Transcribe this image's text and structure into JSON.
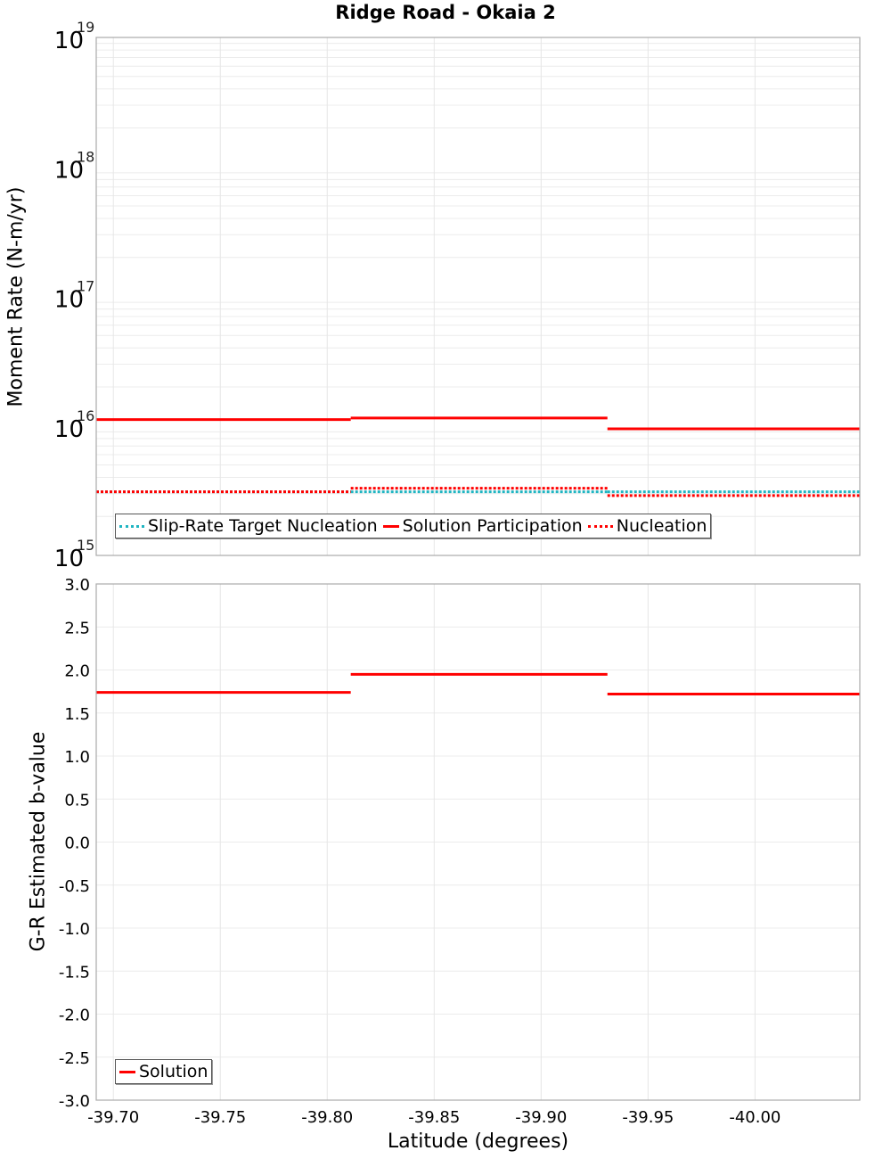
{
  "title": "Ridge Road - Okaia 2",
  "top_plot": {
    "ylabel": "Moment Rate (N-m/yr)",
    "yticks": [
      {
        "base": "10",
        "exp": "19"
      },
      {
        "base": "10",
        "exp": "18"
      },
      {
        "base": "10",
        "exp": "17"
      },
      {
        "base": "10",
        "exp": "16"
      },
      {
        "base": "10",
        "exp": "15"
      }
    ],
    "legend": [
      {
        "label": "Slip-Rate Target Nucleation",
        "style": "dotted",
        "color": "#1fb5c2"
      },
      {
        "label": "Solution Participation",
        "style": "solid",
        "color": "#ff0000"
      },
      {
        "label": "Nucleation",
        "style": "dotted",
        "color": "#ff0000"
      }
    ]
  },
  "bottom_plot": {
    "ylabel": "G-R Estimated b-value",
    "yticks": [
      "3.0",
      "2.5",
      "2.0",
      "1.5",
      "1.0",
      "0.5",
      "0.0",
      "-0.5",
      "-1.0",
      "-1.5",
      "-2.0",
      "-2.5",
      "-3.0"
    ],
    "legend": [
      {
        "label": "Solution",
        "style": "solid",
        "color": "#ff0000"
      }
    ]
  },
  "xaxis": {
    "label": "Latitude (degrees)",
    "ticks": [
      "-39.70",
      "-39.75",
      "-39.80",
      "-39.85",
      "-39.90",
      "-39.95",
      "-40.00"
    ]
  },
  "chart_data": [
    {
      "type": "line",
      "title": "Ridge Road - Okaia 2",
      "xlabel": "Latitude (degrees)",
      "ylabel": "Moment Rate (N-m/yr)",
      "yscale": "log",
      "ylim": [
        1000000000000000.0,
        1e+19
      ],
      "xlim": [
        -39.692,
        -40.049
      ],
      "grid": true,
      "legend_position": "lower-left",
      "step_segments_x": [
        [
          -39.692,
          -39.811
        ],
        [
          -39.811,
          -39.931
        ],
        [
          -39.931,
          -40.049
        ]
      ],
      "series": [
        {
          "name": "Slip-Rate Target Nucleation",
          "style": "dotted",
          "color": "#1fb5c2",
          "values": [
            3100000000000000.0,
            3100000000000000.0,
            3100000000000000.0
          ]
        },
        {
          "name": "Solution Participation",
          "style": "solid",
          "color": "#ff0000",
          "values": [
            1.12e+16,
            1.15e+16,
            9500000000000000.0
          ]
        },
        {
          "name": "Nucleation",
          "style": "dotted",
          "color": "#ff0000",
          "values": [
            3100000000000000.0,
            3300000000000000.0,
            2900000000000000.0
          ]
        }
      ]
    },
    {
      "type": "line",
      "xlabel": "Latitude (degrees)",
      "ylabel": "G-R Estimated b-value",
      "ylim": [
        -3.0,
        3.0
      ],
      "xlim": [
        -39.692,
        -40.049
      ],
      "grid": true,
      "legend_position": "lower-left",
      "step_segments_x": [
        [
          -39.692,
          -39.811
        ],
        [
          -39.811,
          -39.931
        ],
        [
          -39.931,
          -40.049
        ]
      ],
      "series": [
        {
          "name": "Solution",
          "style": "solid",
          "color": "#ff0000",
          "values": [
            1.74,
            1.95,
            1.72
          ]
        }
      ]
    }
  ]
}
